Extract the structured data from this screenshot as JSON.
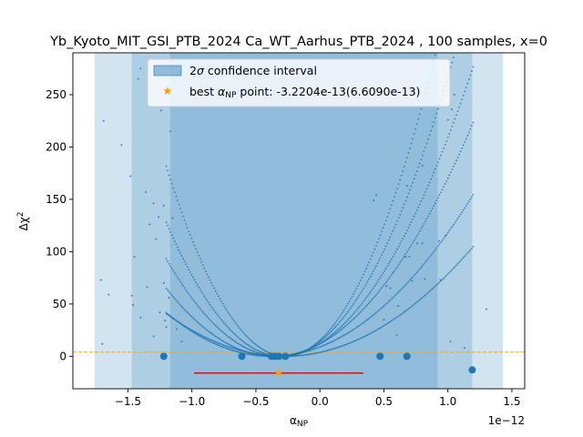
{
  "chart_data": {
    "type": "scatter",
    "title": "Yb_Kyoto_MIT_GSI_PTB_2024 Ca_WT_Aarhus_PTB_2024 , 100 samples, x=0",
    "xlabel": "α_NP",
    "ylabel": "Δχ²",
    "x_scale_label": "1e−12",
    "x_unit_factor": 1e-12,
    "xlim": [
      -1.93,
      1.6
    ],
    "ylim": [
      -31,
      290
    ],
    "x_ticks": [
      -1.5,
      -1.0,
      -0.5,
      0.0,
      0.5,
      1.0,
      1.5
    ],
    "x_tick_labels": [
      "−1.5",
      "−1.0",
      "−0.5",
      "0.0",
      "0.5",
      "1.0",
      "1.5"
    ],
    "y_ticks": [
      0,
      50,
      100,
      150,
      200,
      250
    ],
    "y_tick_labels": [
      "0",
      "50",
      "100",
      "150",
      "200",
      "250"
    ],
    "threshold_y": 4,
    "bands": [
      {
        "x0": -1.76,
        "x1": 1.43,
        "role": "outer"
      },
      {
        "x0": -1.47,
        "x1": 1.19,
        "role": "middle"
      },
      {
        "x0": -1.17,
        "x1": 0.92,
        "role": "inner"
      }
    ],
    "best_point": {
      "x": -0.322,
      "y": -16,
      "err": 0.661
    },
    "min_points": [
      {
        "x": -1.22,
        "y": 0
      },
      {
        "x": -0.61,
        "y": 0
      },
      {
        "x": -0.38,
        "y": 0
      },
      {
        "x": -0.35,
        "y": 0
      },
      {
        "x": -0.32,
        "y": 0
      },
      {
        "x": -0.27,
        "y": 0
      },
      {
        "x": 0.47,
        "y": 0
      },
      {
        "x": 0.68,
        "y": 0
      },
      {
        "x": 1.19,
        "y": -13
      }
    ],
    "parabolas": [
      {
        "x0": -0.32,
        "a": 120
      },
      {
        "x0": -0.3,
        "a": 158
      },
      {
        "x0": -0.36,
        "a": 92
      },
      {
        "x0": -0.27,
        "a": 210
      },
      {
        "x0": -0.38,
        "a": 62
      },
      {
        "x0": -0.28,
        "a": 48
      }
    ],
    "scatter": [
      [
        -1.69,
        225
      ],
      [
        -1.55,
        202
      ],
      [
        -1.71,
        73
      ],
      [
        -1.65,
        59
      ],
      [
        -1.7,
        12
      ],
      [
        -1.48,
        172
      ],
      [
        -1.36,
        157
      ],
      [
        -1.42,
        265
      ],
      [
        -1.4,
        275
      ],
      [
        -1.24,
        235
      ],
      [
        -1.17,
        215
      ],
      [
        -1.3,
        146
      ],
      [
        -1.22,
        144
      ],
      [
        -1.26,
        133
      ],
      [
        -1.15,
        132
      ],
      [
        -1.33,
        126
      ],
      [
        -1.28,
        112
      ],
      [
        -1.45,
        95
      ],
      [
        -1.22,
        70
      ],
      [
        -1.35,
        66
      ],
      [
        -1.47,
        58
      ],
      [
        -1.46,
        49
      ],
      [
        -1.25,
        42
      ],
      [
        -1.21,
        34
      ],
      [
        -1.18,
        56
      ],
      [
        -1.2,
        28
      ],
      [
        -1.12,
        26
      ],
      [
        -1.3,
        19
      ],
      [
        -1.08,
        14
      ],
      [
        -1.4,
        37
      ],
      [
        1.0,
        226
      ],
      [
        1.03,
        236
      ],
      [
        1.05,
        250
      ],
      [
        0.8,
        182
      ],
      [
        0.68,
        163
      ],
      [
        0.44,
        154
      ],
      [
        0.42,
        149
      ],
      [
        0.98,
        115
      ],
      [
        0.93,
        110
      ],
      [
        0.76,
        108
      ],
      [
        0.8,
        108
      ],
      [
        0.67,
        95
      ],
      [
        0.7,
        95
      ],
      [
        0.57,
        80
      ],
      [
        0.82,
        74
      ],
      [
        0.72,
        72
      ],
      [
        0.94,
        73
      ],
      [
        0.55,
        65
      ],
      [
        0.52,
        67
      ],
      [
        0.61,
        48
      ],
      [
        0.5,
        35
      ],
      [
        1.13,
        8
      ],
      [
        1.02,
        14
      ],
      [
        1.3,
        45
      ],
      [
        0.6,
        20
      ]
    ],
    "legend": [
      {
        "label": "2σ confidence interval",
        "marker": "patch"
      },
      {
        "label": "best α_NP point: -3.2204e-13(6.6090e-13)",
        "marker": "star"
      }
    ],
    "legend_placement": "top-center",
    "colors": {
      "band": "#1f77b4",
      "points": "#1f77b4",
      "best": "#ff9f0e",
      "threshold": "#ffa500",
      "interval": "#ff0000"
    }
  }
}
